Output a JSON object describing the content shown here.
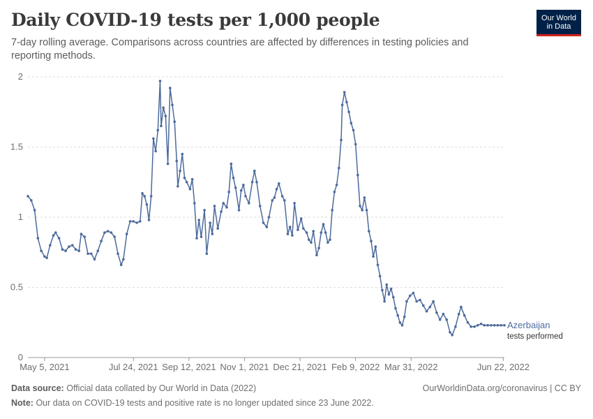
{
  "header": {
    "title": "Daily COVID-19 tests per 1,000 people",
    "subtitle": "7-day rolling average. Comparisons across countries are affected by differences in testing policies and reporting methods.",
    "logo_line1": "Our World",
    "logo_line2": "in Data"
  },
  "footer": {
    "source_label": "Data source:",
    "source_text": "Official data collated by Our World in Data (2022)",
    "link": "OurWorldinData.org/coronavirus | CC BY",
    "note_label": "Note:",
    "note_text": "Our data on COVID-19 tests and positive rate is no longer updated since 23 June 2022."
  },
  "colors": {
    "series": "#4c6a9c",
    "grid": "#dddddd",
    "text": "#5b5b5b",
    "logo_bg": "#002147",
    "logo_accent": "#ce261e"
  },
  "chart_data": {
    "type": "line",
    "x_type": "date",
    "xlim": [
      "2021-04-20",
      "2022-06-23"
    ],
    "ylim": [
      0,
      2
    ],
    "yticks": [
      {
        "value": 0,
        "label": "0"
      },
      {
        "value": 0.5,
        "label": "0.5"
      },
      {
        "value": 1,
        "label": "1"
      },
      {
        "value": 1.5,
        "label": "1.5"
      },
      {
        "value": 2,
        "label": "2"
      }
    ],
    "xticks": [
      {
        "value": "2021-05-05",
        "label": "May 5, 2021"
      },
      {
        "value": "2021-07-24",
        "label": "Jul 24, 2021"
      },
      {
        "value": "2021-09-12",
        "label": "Sep 12, 2021"
      },
      {
        "value": "2021-11-01",
        "label": "Nov 1, 2021"
      },
      {
        "value": "2021-12-21",
        "label": "Dec 21, 2021"
      },
      {
        "value": "2022-02-09",
        "label": "Feb 9, 2022"
      },
      {
        "value": "2022-03-31",
        "label": "Mar 31, 2022"
      },
      {
        "value": "2022-06-22",
        "label": "Jun 22, 2022"
      }
    ],
    "grid": "horizontal dashed",
    "series": [
      {
        "name": "Azerbaijan",
        "label_line2": "tests performed",
        "points": [
          [
            "2021-04-20",
            1.15
          ],
          [
            "2021-04-23",
            1.12
          ],
          [
            "2021-04-26",
            1.05
          ],
          [
            "2021-04-29",
            0.85
          ],
          [
            "2021-05-02",
            0.76
          ],
          [
            "2021-05-05",
            0.72
          ],
          [
            "2021-05-07",
            0.71
          ],
          [
            "2021-05-10",
            0.8
          ],
          [
            "2021-05-13",
            0.87
          ],
          [
            "2021-05-15",
            0.89
          ],
          [
            "2021-05-18",
            0.85
          ],
          [
            "2021-05-21",
            0.77
          ],
          [
            "2021-05-24",
            0.76
          ],
          [
            "2021-05-27",
            0.79
          ],
          [
            "2021-05-30",
            0.8
          ],
          [
            "2021-06-02",
            0.77
          ],
          [
            "2021-06-05",
            0.76
          ],
          [
            "2021-06-07",
            0.88
          ],
          [
            "2021-06-10",
            0.86
          ],
          [
            "2021-06-13",
            0.74
          ],
          [
            "2021-06-16",
            0.74
          ],
          [
            "2021-06-19",
            0.7
          ],
          [
            "2021-06-22",
            0.76
          ],
          [
            "2021-06-25",
            0.83
          ],
          [
            "2021-06-28",
            0.89
          ],
          [
            "2021-07-01",
            0.9
          ],
          [
            "2021-07-04",
            0.89
          ],
          [
            "2021-07-07",
            0.86
          ],
          [
            "2021-07-10",
            0.74
          ],
          [
            "2021-07-13",
            0.66
          ],
          [
            "2021-07-15",
            0.7
          ],
          [
            "2021-07-18",
            0.88
          ],
          [
            "2021-07-21",
            0.97
          ],
          [
            "2021-07-24",
            0.97
          ],
          [
            "2021-07-27",
            0.96
          ],
          [
            "2021-07-30",
            0.97
          ],
          [
            "2021-08-01",
            1.17
          ],
          [
            "2021-08-03",
            1.15
          ],
          [
            "2021-08-05",
            1.09
          ],
          [
            "2021-08-07",
            0.98
          ],
          [
            "2021-08-09",
            1.15
          ],
          [
            "2021-08-11",
            1.56
          ],
          [
            "2021-08-13",
            1.47
          ],
          [
            "2021-08-15",
            1.62
          ],
          [
            "2021-08-17",
            1.97
          ],
          [
            "2021-08-18",
            1.65
          ],
          [
            "2021-08-20",
            1.78
          ],
          [
            "2021-08-22",
            1.72
          ],
          [
            "2021-08-24",
            1.38
          ],
          [
            "2021-08-26",
            1.92
          ],
          [
            "2021-08-28",
            1.8
          ],
          [
            "2021-08-30",
            1.68
          ],
          [
            "2021-09-01",
            1.4
          ],
          [
            "2021-09-02",
            1.22
          ],
          [
            "2021-09-04",
            1.33
          ],
          [
            "2021-09-06",
            1.45
          ],
          [
            "2021-09-08",
            1.28
          ],
          [
            "2021-09-10",
            1.25
          ],
          [
            "2021-09-13",
            1.2
          ],
          [
            "2021-09-15",
            1.27
          ],
          [
            "2021-09-17",
            1.1
          ],
          [
            "2021-09-19",
            0.85
          ],
          [
            "2021-09-21",
            0.98
          ],
          [
            "2021-09-23",
            0.86
          ],
          [
            "2021-09-26",
            1.05
          ],
          [
            "2021-09-28",
            0.74
          ],
          [
            "2021-10-01",
            0.96
          ],
          [
            "2021-10-03",
            0.88
          ],
          [
            "2021-10-05",
            1.08
          ],
          [
            "2021-10-08",
            0.92
          ],
          [
            "2021-10-11",
            1.04
          ],
          [
            "2021-10-13",
            1.1
          ],
          [
            "2021-10-16",
            1.07
          ],
          [
            "2021-10-18",
            1.18
          ],
          [
            "2021-10-20",
            1.38
          ],
          [
            "2021-10-22",
            1.28
          ],
          [
            "2021-10-24",
            1.21
          ],
          [
            "2021-10-27",
            1.05
          ],
          [
            "2021-10-29",
            1.19
          ],
          [
            "2021-10-31",
            1.23
          ],
          [
            "2021-11-02",
            1.15
          ],
          [
            "2021-11-05",
            1.1
          ],
          [
            "2021-11-08",
            1.25
          ],
          [
            "2021-11-10",
            1.33
          ],
          [
            "2021-11-12",
            1.25
          ],
          [
            "2021-11-15",
            1.08
          ],
          [
            "2021-11-18",
            0.96
          ],
          [
            "2021-11-21",
            0.93
          ],
          [
            "2021-11-23",
            1.0
          ],
          [
            "2021-11-26",
            1.12
          ],
          [
            "2021-11-28",
            1.14
          ],
          [
            "2021-11-30",
            1.2
          ],
          [
            "2021-12-02",
            1.24
          ],
          [
            "2021-12-05",
            1.15
          ],
          [
            "2021-12-07",
            1.12
          ],
          [
            "2021-12-10",
            0.88
          ],
          [
            "2021-12-12",
            0.93
          ],
          [
            "2021-12-14",
            0.87
          ],
          [
            "2021-12-16",
            1.1
          ],
          [
            "2021-12-19",
            0.91
          ],
          [
            "2021-12-22",
            0.99
          ],
          [
            "2021-12-24",
            0.92
          ],
          [
            "2021-12-27",
            0.89
          ],
          [
            "2021-12-29",
            0.84
          ],
          [
            "2021-12-31",
            0.82
          ],
          [
            "2022-01-02",
            0.9
          ],
          [
            "2022-01-05",
            0.73
          ],
          [
            "2022-01-07",
            0.78
          ],
          [
            "2022-01-09",
            0.89
          ],
          [
            "2022-01-11",
            0.95
          ],
          [
            "2022-01-13",
            0.89
          ],
          [
            "2022-01-15",
            0.82
          ],
          [
            "2022-01-17",
            0.84
          ],
          [
            "2022-01-19",
            1.05
          ],
          [
            "2022-01-21",
            1.18
          ],
          [
            "2022-01-23",
            1.23
          ],
          [
            "2022-01-25",
            1.35
          ],
          [
            "2022-01-27",
            1.55
          ],
          [
            "2022-01-28",
            1.8
          ],
          [
            "2022-01-30",
            1.89
          ],
          [
            "2022-02-01",
            1.82
          ],
          [
            "2022-02-03",
            1.75
          ],
          [
            "2022-02-05",
            1.67
          ],
          [
            "2022-02-07",
            1.62
          ],
          [
            "2022-02-09",
            1.52
          ],
          [
            "2022-02-11",
            1.3
          ],
          [
            "2022-02-13",
            1.08
          ],
          [
            "2022-02-15",
            1.05
          ],
          [
            "2022-02-17",
            1.14
          ],
          [
            "2022-02-19",
            1.05
          ],
          [
            "2022-02-21",
            0.9
          ],
          [
            "2022-02-23",
            0.83
          ],
          [
            "2022-02-25",
            0.72
          ],
          [
            "2022-02-27",
            0.79
          ],
          [
            "2022-03-01",
            0.66
          ],
          [
            "2022-03-03",
            0.58
          ],
          [
            "2022-03-05",
            0.48
          ],
          [
            "2022-03-07",
            0.4
          ],
          [
            "2022-03-09",
            0.52
          ],
          [
            "2022-03-11",
            0.45
          ],
          [
            "2022-03-13",
            0.49
          ],
          [
            "2022-03-15",
            0.43
          ],
          [
            "2022-03-17",
            0.35
          ],
          [
            "2022-03-19",
            0.3
          ],
          [
            "2022-03-21",
            0.25
          ],
          [
            "2022-03-23",
            0.23
          ],
          [
            "2022-03-25",
            0.29
          ],
          [
            "2022-03-27",
            0.4
          ],
          [
            "2022-03-30",
            0.44
          ],
          [
            "2022-04-02",
            0.46
          ],
          [
            "2022-04-05",
            0.4
          ],
          [
            "2022-04-08",
            0.41
          ],
          [
            "2022-04-11",
            0.37
          ],
          [
            "2022-04-14",
            0.33
          ],
          [
            "2022-04-17",
            0.36
          ],
          [
            "2022-04-20",
            0.4
          ],
          [
            "2022-04-23",
            0.32
          ],
          [
            "2022-04-26",
            0.27
          ],
          [
            "2022-04-29",
            0.31
          ],
          [
            "2022-05-02",
            0.27
          ],
          [
            "2022-05-05",
            0.18
          ],
          [
            "2022-05-07",
            0.16
          ],
          [
            "2022-05-10",
            0.22
          ],
          [
            "2022-05-13",
            0.31
          ],
          [
            "2022-05-15",
            0.36
          ],
          [
            "2022-05-18",
            0.3
          ],
          [
            "2022-05-21",
            0.25
          ],
          [
            "2022-05-24",
            0.22
          ],
          [
            "2022-05-27",
            0.22
          ],
          [
            "2022-05-30",
            0.23
          ],
          [
            "2022-06-02",
            0.24
          ],
          [
            "2022-06-05",
            0.23
          ],
          [
            "2022-06-08",
            0.23
          ],
          [
            "2022-06-11",
            0.23
          ],
          [
            "2022-06-14",
            0.23
          ],
          [
            "2022-06-17",
            0.23
          ],
          [
            "2022-06-20",
            0.23
          ],
          [
            "2022-06-23",
            0.23
          ]
        ]
      }
    ]
  }
}
